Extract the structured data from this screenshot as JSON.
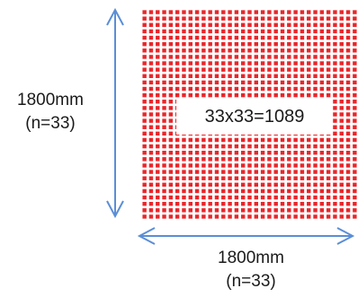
{
  "grid": {
    "rows": 33,
    "cols": 33,
    "dot_color": "#e8262a",
    "total_label": "33x33=1089"
  },
  "height_dimension": {
    "length": "1800mm",
    "count": "(n=33)"
  },
  "width_dimension": {
    "length": "1800mm",
    "count": "(n=33)"
  },
  "arrow_color": "#5b8ed6"
}
